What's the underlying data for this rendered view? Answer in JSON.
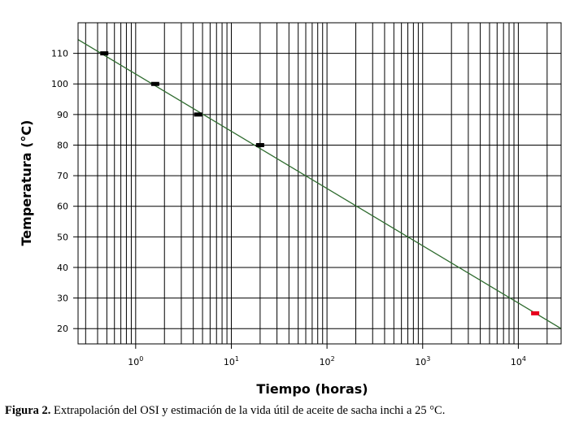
{
  "chart_data": {
    "type": "scatter",
    "xlabel": "Tiempo (horas)",
    "ylabel": "Temperatura (°C)",
    "x_scale": "log",
    "xlim": [
      0.25,
      28000
    ],
    "ylim": [
      15,
      120
    ],
    "grid": true,
    "x_ticks": [
      {
        "value": 1,
        "base": "10",
        "exp": "0"
      },
      {
        "value": 10,
        "base": "10",
        "exp": "1"
      },
      {
        "value": 100,
        "base": "10",
        "exp": "2"
      },
      {
        "value": 1000,
        "base": "10",
        "exp": "3"
      },
      {
        "value": 10000,
        "base": "10",
        "exp": "4"
      }
    ],
    "y_ticks": [
      20,
      30,
      40,
      50,
      60,
      70,
      80,
      90,
      100,
      110
    ],
    "series": [
      {
        "points": [
          {
            "x": 0.47,
            "y": 110
          },
          {
            "x": 1.6,
            "y": 100
          },
          {
            "x": 4.5,
            "y": 90
          },
          {
            "x": 20,
            "y": 80
          }
        ],
        "color": "#000000"
      },
      {
        "points": [
          {
            "x": 15000,
            "y": 25
          }
        ],
        "color": "#e8001c"
      }
    ],
    "fit_line": {
      "points": [
        {
          "x": 0.25,
          "y": 114.5
        },
        {
          "x": 28000,
          "y": 20
        }
      ],
      "color": "#2e6b2e"
    }
  },
  "caption": {
    "label": "Figura 2.",
    "text": " Extrapolación del OSI y estimación de la vida útil de aceite de sacha inchi a 25 °C."
  }
}
